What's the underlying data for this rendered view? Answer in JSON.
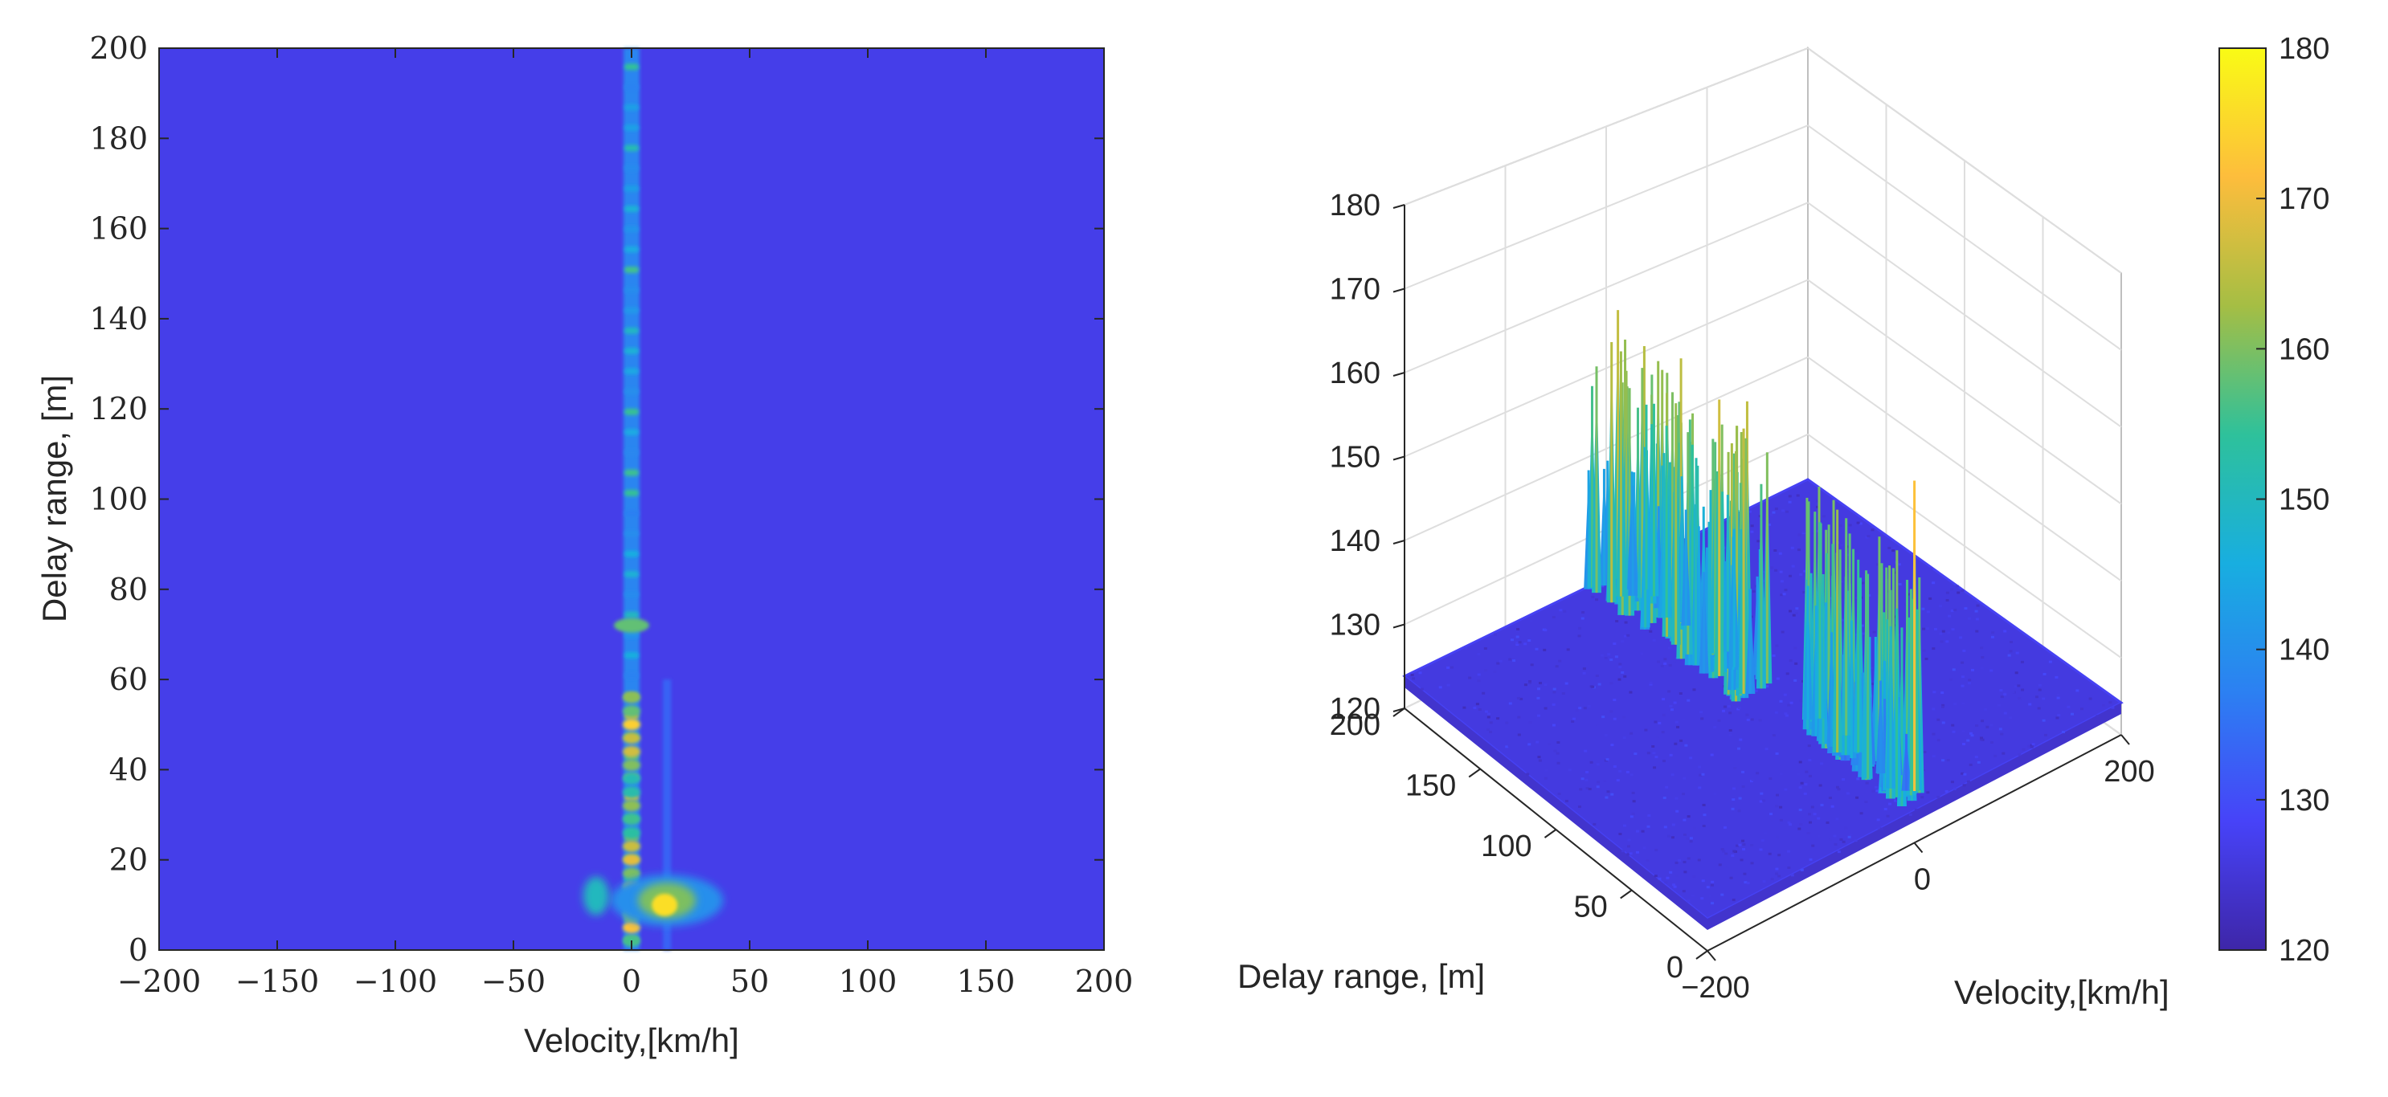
{
  "chart_data": [
    {
      "type": "heatmap",
      "title": "",
      "xlabel": "Velocity,[km/h]",
      "ylabel": "Delay range, [m]",
      "xlim": [
        -200,
        200
      ],
      "ylim": [
        0,
        200
      ],
      "x_ticks": [
        "−200",
        "−150",
        "−100",
        "−50",
        "0",
        "50",
        "100",
        "150",
        "200"
      ],
      "y_ticks": [
        "0",
        "20",
        "40",
        "60",
        "80",
        "100",
        "120",
        "140",
        "160",
        "180",
        "200"
      ],
      "clim": [
        120,
        180
      ],
      "background_level": 127,
      "features": [
        {
          "name": "zero-velocity ridge",
          "velocity": 0,
          "delay_from": 0,
          "delay_to": 200,
          "level": 140
        },
        {
          "name": "strong spot",
          "velocity": 0,
          "delay": 72,
          "level": 160
        },
        {
          "name": "near-range cluster",
          "velocity": 0,
          "delay_from": 0,
          "delay_to": 60,
          "level": 165
        },
        {
          "name": "moving target",
          "velocity": 15,
          "delay": 10,
          "level": 175
        },
        {
          "name": "moving target",
          "velocity": -15,
          "delay": 12,
          "level": 160
        }
      ]
    },
    {
      "type": "surface3d",
      "title": "",
      "xlabel": "Delay range, [m]",
      "ylabel": "Velocity,[km/h]",
      "zlabel": "",
      "xlim": [
        0,
        200
      ],
      "ylim": [
        -200,
        200
      ],
      "zlim": [
        120,
        180
      ],
      "x_ticks": [
        "0",
        "50",
        "100",
        "150",
        "200"
      ],
      "y_ticks": [
        "−200",
        "0",
        "200"
      ],
      "z_ticks": [
        "120",
        "130",
        "140",
        "150",
        "160",
        "170",
        "180"
      ],
      "background_level": 126,
      "peaks": [
        {
          "delay": 120,
          "velocity": -10,
          "level": 167
        },
        {
          "delay": 50,
          "velocity": 0,
          "level": 162
        },
        {
          "delay": 10,
          "velocity": 15,
          "level": 172
        }
      ]
    }
  ],
  "colorbar": {
    "min": 120,
    "max": 180,
    "ticks": [
      "120",
      "130",
      "140",
      "150",
      "160",
      "170",
      "180"
    ],
    "colormap": [
      "#3e26a8",
      "#4743f8",
      "#2c80f2",
      "#18aee0",
      "#2ec19b",
      "#a5be44",
      "#fdbd3c",
      "#f9fb15"
    ]
  }
}
